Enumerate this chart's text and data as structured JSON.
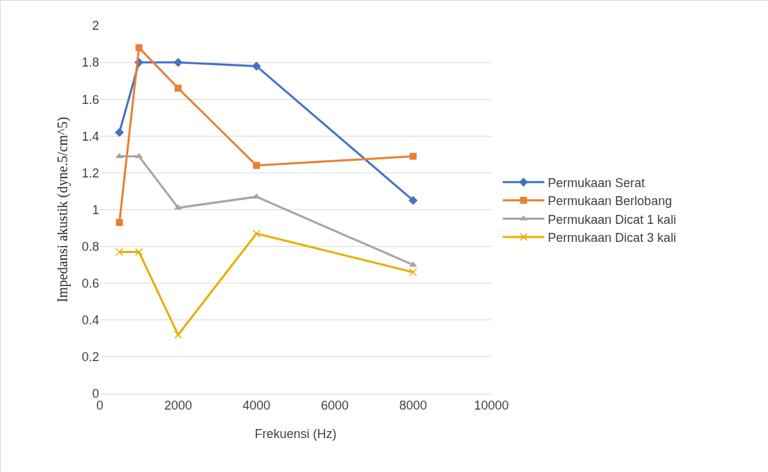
{
  "chart_data": {
    "type": "line",
    "xlabel": "Frekuensi (Hz)",
    "ylabel": "Impedansi akustik (dyne.5/cm^5)",
    "x": [
      500,
      1000,
      2000,
      4000,
      8000
    ],
    "xlim": [
      0,
      10000
    ],
    "xticks": [
      0,
      2000,
      4000,
      6000,
      8000,
      10000
    ],
    "ylim": [
      0,
      2
    ],
    "yticks": [
      0,
      0.2,
      0.4,
      0.6,
      0.8,
      1,
      1.2,
      1.4,
      1.6,
      1.8,
      2
    ],
    "grid": "y",
    "legend": "right",
    "line_style": "solid",
    "series": [
      {
        "name": "Permukaan Serat",
        "color": "#4472c4",
        "marker": "diamond",
        "values": [
          1.42,
          1.8,
          1.8,
          1.78,
          1.05
        ]
      },
      {
        "name": "Permukaan Berlobang",
        "color": "#ed7d31",
        "marker": "square",
        "values": [
          0.93,
          1.88,
          1.66,
          1.24,
          1.29
        ]
      },
      {
        "name": "Permukaan Dicat 1 kali",
        "color": "#a5a5a5",
        "marker": "triangle",
        "values": [
          1.29,
          1.29,
          1.01,
          1.07,
          0.7
        ]
      },
      {
        "name": "Permukaan Dicat 3 kali",
        "color": "#e6b000",
        "marker": "cross",
        "values": [
          0.77,
          0.77,
          0.32,
          0.87,
          0.66
        ]
      }
    ]
  }
}
